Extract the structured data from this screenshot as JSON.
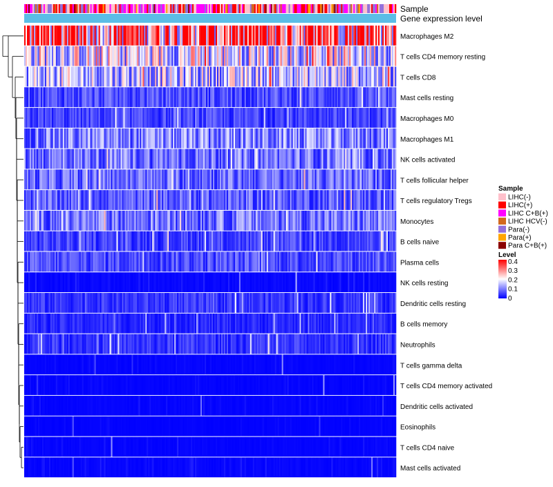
{
  "chart_data": {
    "type": "heatmap",
    "title": "",
    "annotation_tracks": [
      "Sample",
      "Gene expression level"
    ],
    "row_labels": [
      "Macrophages M2",
      "T cells CD4 memory resting",
      "T cells CD8",
      "Mast cells resting",
      "Macrophages M0",
      "Macrophages M1",
      "NK cells activated",
      "T cells follicular helper",
      "T cells regulatory  Tregs",
      "Monocytes",
      "B cells naive",
      "Plasma cells",
      "NK cells resting",
      "Dendritic cells resting",
      "B cells memory",
      "Neutrophils",
      "T cells gamma delta",
      "T cells CD4 memory activated",
      "Dendritic cells activated",
      "Eosinophils",
      "T cells CD4 naive",
      "Mast cells activated"
    ],
    "row_mean_level": [
      0.34,
      0.18,
      0.15,
      0.06,
      0.05,
      0.1,
      0.09,
      0.08,
      0.07,
      0.09,
      0.05,
      0.06,
      0.02,
      0.04,
      0.03,
      0.04,
      0.01,
      0.01,
      0.01,
      0.005,
      0.01,
      0.015
    ],
    "sample_legend": {
      "title": "Sample",
      "entries": [
        {
          "label": "LIHC(-)",
          "color": "#ffc0cb"
        },
        {
          "label": "LIHC(+)",
          "color": "#ff0000"
        },
        {
          "label": "LIHC C+B(+)",
          "color": "#ff00ff"
        },
        {
          "label": "LIHC HCV(-)",
          "color": "#d2691e"
        },
        {
          "label": "Para(-)",
          "color": "#9370db"
        },
        {
          "label": "Para(+)",
          "color": "#ffa500"
        },
        {
          "label": "Para C+B(+)",
          "color": "#8b0000"
        }
      ]
    },
    "level_legend": {
      "title": "Level",
      "range": [
        0,
        0.4
      ],
      "tick_labels": [
        "0.4",
        "0.3",
        "0.2",
        "0.1",
        "0"
      ],
      "colors": [
        "#0000ff",
        "#ffffff",
        "#ff0000"
      ]
    },
    "expression_bar_color": "#5bbde6"
  }
}
